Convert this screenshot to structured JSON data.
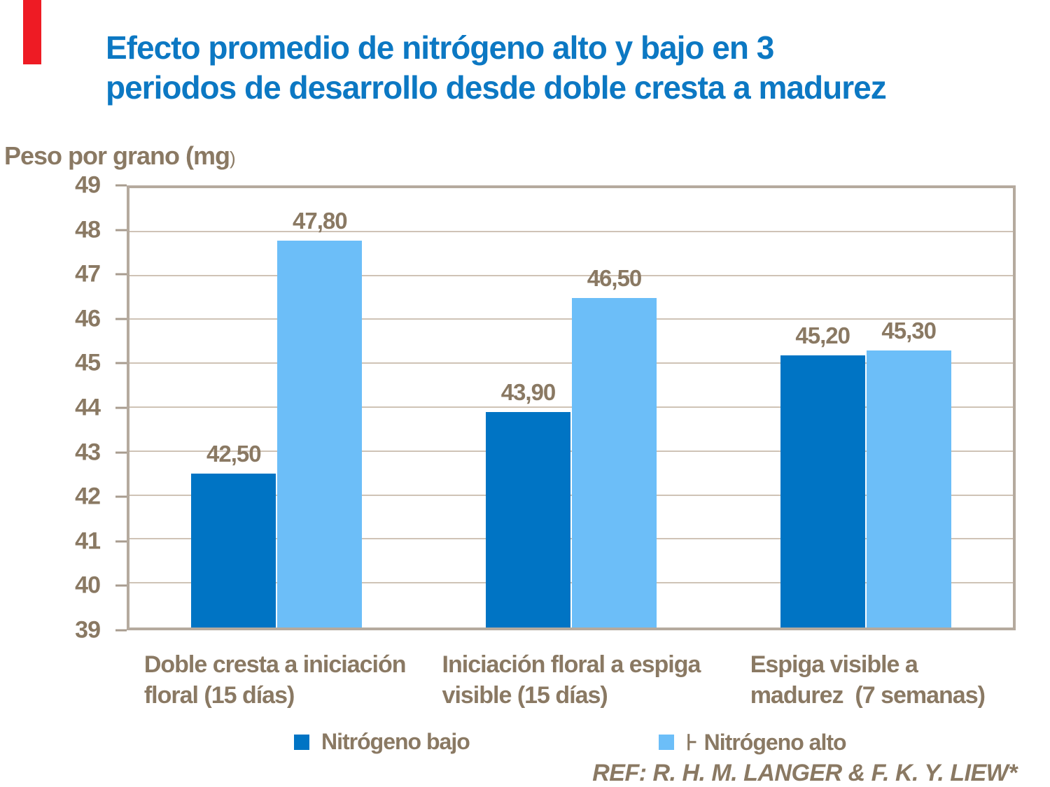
{
  "slide": {
    "accent_color": "#ee1b24",
    "title": {
      "line1": "Efecto promedio de nitrógeno alto y bajo en 3",
      "line2": "periodos de desarrollo desde doble cresta a madurez",
      "color": "#0c78c3"
    },
    "ref_note": "REF: R. H. M. LANGER & F. K. Y. LIEW*"
  },
  "axis": {
    "y_title_main": "Peso por grano (mg",
    "y_title_paren": ")"
  },
  "legend": {
    "items": [
      {
        "label": "Nitrógeno bajo",
        "color": "#0074c4"
      },
      {
        "label": "Nitrógeno alto",
        "color": "#6cbef8",
        "prefix_glyph": "⊦"
      }
    ]
  },
  "chart_data": {
    "type": "bar",
    "title": "Efecto promedio de nitrógeno alto y bajo en 3 periodos de desarrollo desde doble cresta a madurez",
    "ylabel": "Peso por grano (mg)",
    "xlabel": "",
    "ylim": [
      39,
      49
    ],
    "ytick_step": 1,
    "grid": "horizontal",
    "legend_position": "bottom",
    "categories": [
      "Doble cresta a iniciación floral (15 días)",
      "Iniciación floral a espiga visible (15 días)",
      "Espiga visible a madurez (7 semanas)"
    ],
    "category_lines": [
      [
        "Doble cresta a iniciación",
        "floral (15 días)"
      ],
      [
        "Iniciación floral a espiga",
        "visible (15 días)"
      ],
      [
        "Espiga visible a",
        "madurez  (7 semanas)"
      ]
    ],
    "series": [
      {
        "name": "Nitrógeno bajo",
        "color": "#0074c4",
        "values": [
          42.5,
          43.9,
          45.2
        ],
        "value_labels": [
          "42,50",
          "43,90",
          "45,20"
        ]
      },
      {
        "name": "Nitrógeno alto",
        "color": "#6cbef8",
        "values": [
          47.8,
          46.5,
          45.3
        ],
        "value_labels": [
          "47,80",
          "46,50",
          "45,30"
        ]
      }
    ],
    "colors": {
      "text_brown": "#8a7963",
      "plot_border": "#b5aa9e",
      "gridline": "#cfc3b6",
      "title_blue": "#0c78c3"
    }
  }
}
